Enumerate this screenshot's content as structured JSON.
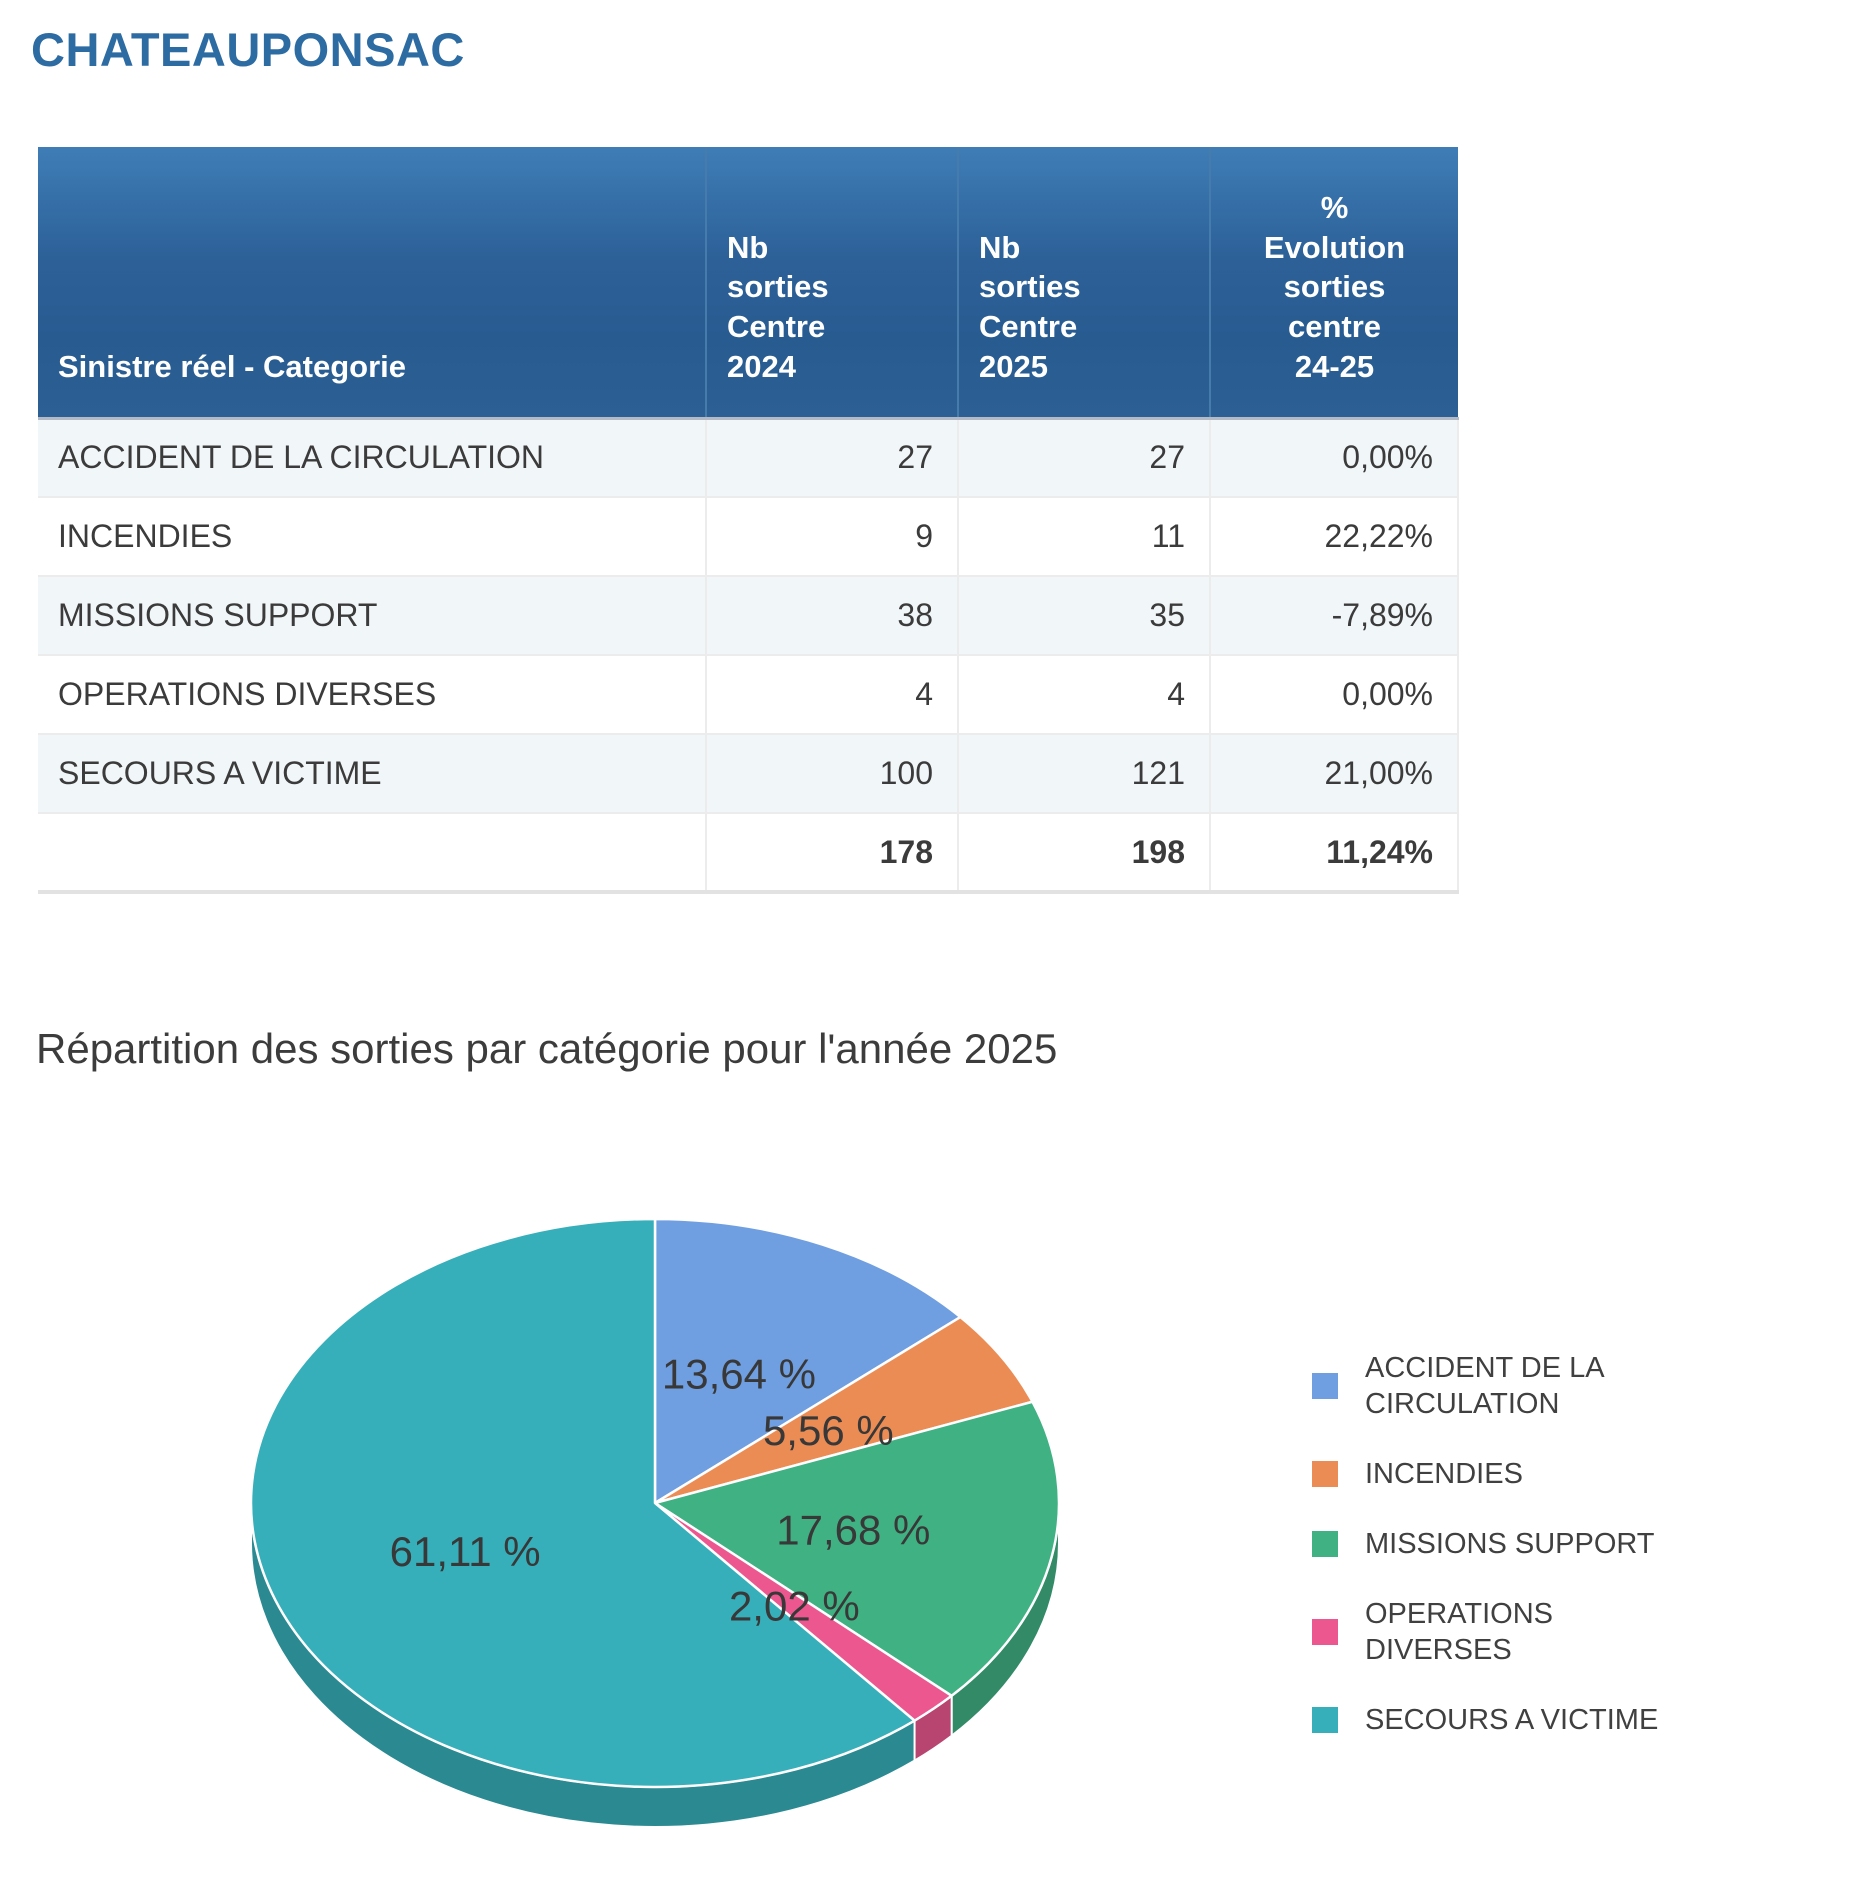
{
  "report": {
    "title": "CHATEAUPONSAC"
  },
  "table": {
    "columns": [
      "Sinistre réel - Categorie",
      "Nb\nsorties\nCentre\n2024",
      "Nb\nsorties\nCentre\n2025",
      "%\nEvolution\nsorties\ncentre\n24-25"
    ],
    "rows": [
      {
        "category": "ACCIDENT DE LA CIRCULATION",
        "sorties_2024": 27,
        "sorties_2025": 27,
        "evolution": "0,00%"
      },
      {
        "category": "INCENDIES",
        "sorties_2024": 9,
        "sorties_2025": 11,
        "evolution": "22,22%"
      },
      {
        "category": "MISSIONS SUPPORT",
        "sorties_2024": 38,
        "sorties_2025": 35,
        "evolution": "-7,89%"
      },
      {
        "category": "OPERATIONS DIVERSES",
        "sorties_2024": 4,
        "sorties_2025": 4,
        "evolution": "0,00%"
      },
      {
        "category": "SECOURS A VICTIME",
        "sorties_2024": 100,
        "sorties_2025": 121,
        "evolution": "21,00%"
      }
    ],
    "total": {
      "category": "",
      "sorties_2024": 178,
      "sorties_2025": 198,
      "evolution": "11,24%"
    }
  },
  "chart_section": {
    "title": "Répartition des sorties par catégorie pour l'année 2025"
  },
  "chart_data": {
    "type": "pie",
    "title": "Répartition des sorties par catégorie pour l'année 2025",
    "labels": [
      "ACCIDENT DE LA CIRCULATION",
      "INCENDIES",
      "MISSIONS SUPPORT",
      "OPERATIONS DIVERSES",
      "SECOURS A VICTIME"
    ],
    "values": [
      13.64,
      5.56,
      17.68,
      2.02,
      61.11
    ],
    "value_labels": [
      "13,64 %",
      "5,56 %",
      "17,68 %",
      "2,02 %",
      "61,11 %"
    ],
    "colors": [
      "#6f9fe0",
      "#ec8c55",
      "#40b183",
      "#ec5790",
      "#36afba"
    ],
    "style": "3d",
    "start_angle_deg": 0,
    "direction": "clockwise",
    "legend_position": "right"
  }
}
